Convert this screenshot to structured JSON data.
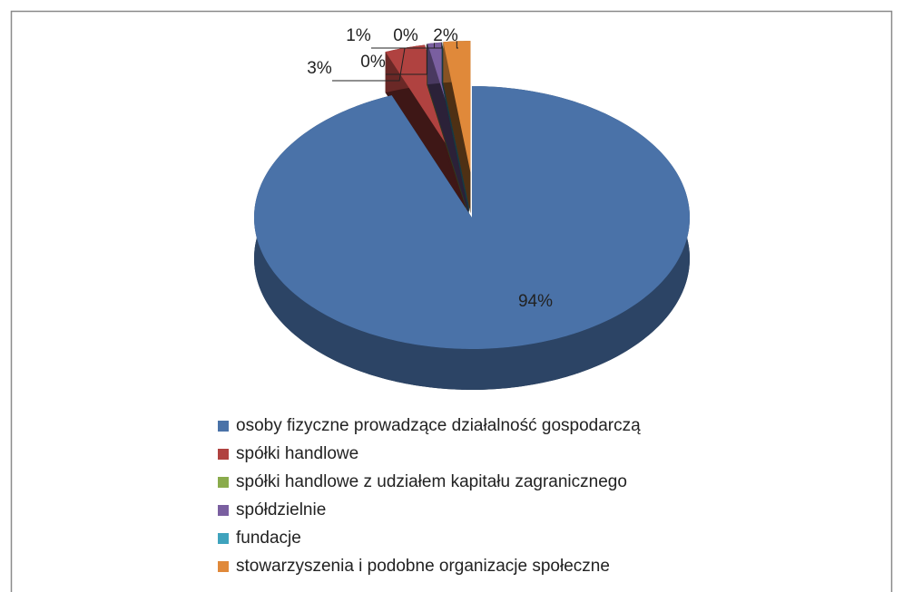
{
  "chart_data": {
    "type": "pie3d",
    "categories": [
      "osoby fizyczne prowadzące działalność gospodarczą",
      "spółki handlowe",
      "spółki handlowe z udziałem kapitału zagranicznego",
      "spółdzielnie",
      "fundacje",
      "stowarzyszenia i podobne organizacje społeczne"
    ],
    "values": [
      94,
      3,
      0,
      1,
      0,
      2
    ],
    "value_labels": [
      "94%",
      "3%",
      "0%",
      "1%",
      "0%",
      "2%"
    ],
    "colors": [
      "#4a72a8",
      "#b04240",
      "#8aab4c",
      "#7a5fa0",
      "#3fa3bd",
      "#e0893a"
    ],
    "legend": "bottom"
  }
}
